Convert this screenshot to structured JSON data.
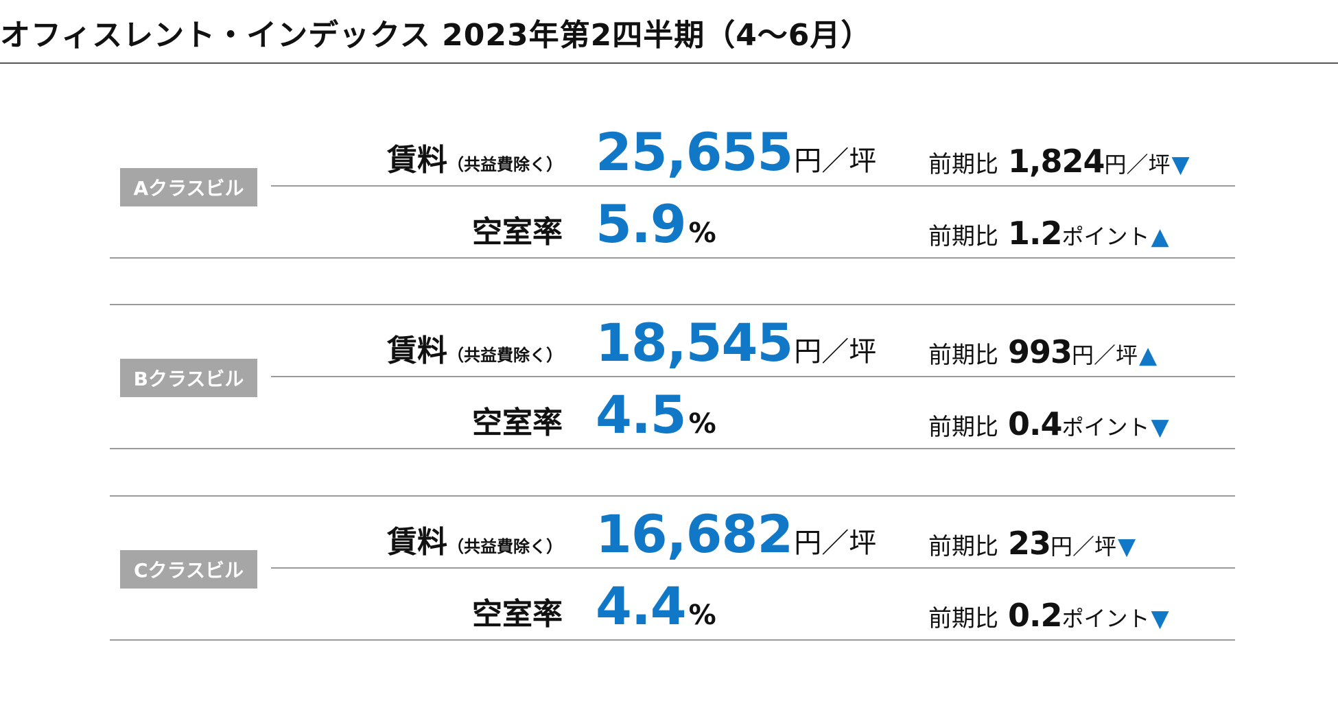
{
  "title": "オフィスレント・インデックス 2023年第2四半期（4～6月）",
  "labels": {
    "rent_main": "賃料",
    "rent_note": "（共益費除く）",
    "vacancy": "空室率",
    "prev_period": "前期比",
    "rent_unit": "円／坪",
    "pct_unit": "%",
    "point_unit": "ポイント"
  },
  "sections": [
    {
      "badge": "Aクラスビル",
      "rent": {
        "value": "25,655",
        "change": "1,824",
        "direction": "▼"
      },
      "vacancy": {
        "value": "5.9",
        "change": "1.2",
        "direction": "▲"
      }
    },
    {
      "badge": "Bクラスビル",
      "rent": {
        "value": "18,545",
        "change": "993",
        "direction": "▲"
      },
      "vacancy": {
        "value": "4.5",
        "change": "0.4",
        "direction": "▼"
      }
    },
    {
      "badge": "Cクラスビル",
      "rent": {
        "value": "16,682",
        "change": "23",
        "direction": "▼"
      },
      "vacancy": {
        "value": "4.4",
        "change": "0.2",
        "direction": "▼"
      }
    }
  ],
  "colors": {
    "accent": "#1078c6",
    "badge": "#a6a6a6",
    "rule": "#9a9a9a"
  }
}
